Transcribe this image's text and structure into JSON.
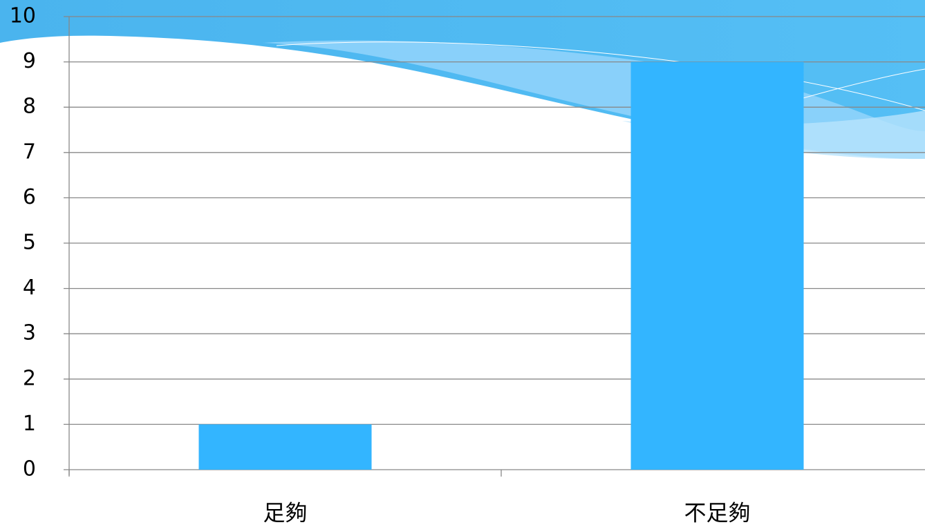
{
  "chart_data": {
    "type": "bar",
    "categories": [
      "足夠",
      "不足夠"
    ],
    "values": [
      1,
      9
    ],
    "color": "#33b5ff",
    "ylim": [
      0,
      10
    ],
    "yticks": [
      0,
      1,
      2,
      3,
      4,
      5,
      6,
      7,
      8,
      9,
      10
    ],
    "grid": true
  }
}
